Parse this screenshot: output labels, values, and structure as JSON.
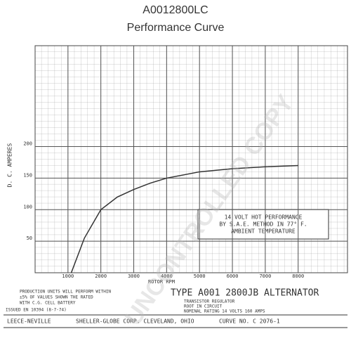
{
  "chart_data": {
    "type": "line",
    "title": "A0012800LC",
    "subtitle": "Performance Curve",
    "x_label": "ROTOR RPM",
    "y_label": "D. C. AMPERES",
    "x": [
      1100,
      1500,
      2000,
      2500,
      3000,
      3500,
      4000,
      5000,
      6000,
      7000,
      8000
    ],
    "series": [
      {
        "name": "14 VOLT HOT PERFORMANCE",
        "color": "#333333",
        "values": [
          0,
          55,
          100,
          120,
          132,
          142,
          150,
          160,
          165,
          168,
          170
        ]
      }
    ],
    "xlim": [
      0,
      9500
    ],
    "ylim": [
      0,
      360
    ],
    "xticks": [
      1000,
      2000,
      3000,
      4000,
      5000,
      6000,
      7000,
      8000
    ],
    "yticks": [
      50,
      100,
      150,
      200
    ],
    "grid": true,
    "annotation": [
      "14 VOLT HOT PERFORMANCE",
      "BY S.A.E. METHOD IN 77° F.",
      "AMBIENT TEMPERATURE"
    ]
  },
  "footer": {
    "note": [
      "PRODUCTION UNITS WILL PERFORM WITHIN",
      "±5% OF VALUES SHOWN THE RATED",
      "WITH C.G. CELL BATTERY"
    ],
    "issued": "ISSUED EN 10394 (8-7-74)",
    "type_line": "TYPE A001 2800JB ALTERNATOR",
    "regulator": [
      "TRANSISTOR REGULATOR",
      "ROOT IN CIRCUIT"
    ],
    "rating": "NOMINAL RATING 14 VOLTS 160 AMPS",
    "maker": "LEECE-NEVILLE",
    "corp": "SHELLER-GLOBE CORP. CLEVELAND, OHIO",
    "curve_no": "CURVE NO. C 2076-1",
    "watermark": "UNCONTROLLED COPY"
  }
}
